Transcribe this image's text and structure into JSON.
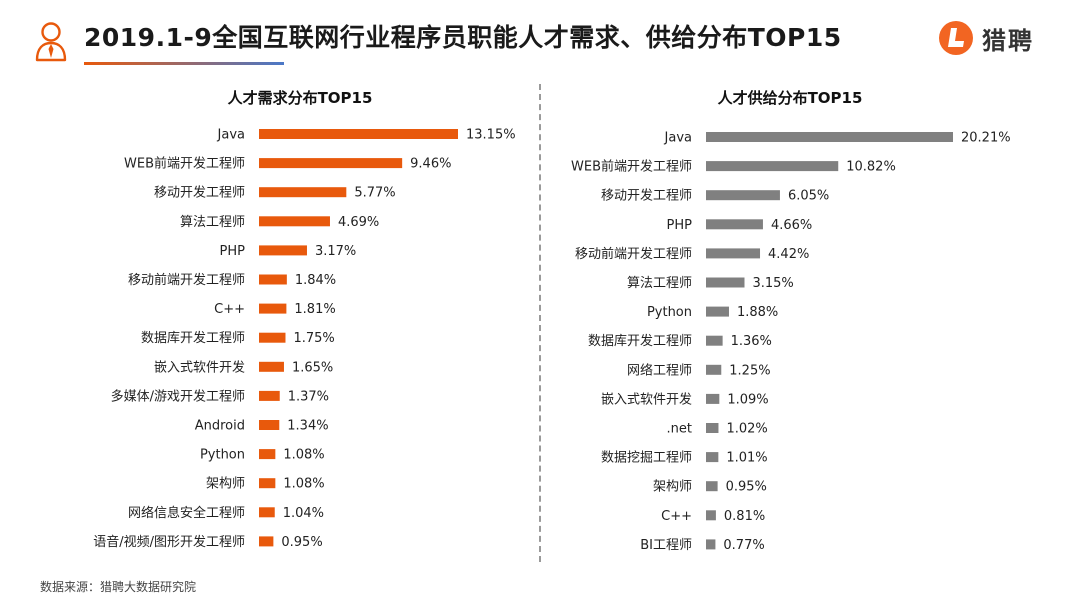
{
  "header": {
    "title": "2019.1-9全国互联网行业程序员职能人才需求、供给分布TOP15",
    "logo_text": "猎聘"
  },
  "colors": {
    "demand_bar": "#E8590C",
    "supply_bar": "#808080",
    "underline_start": "#E8590C",
    "underline_end": "#4A78C8",
    "logo_orange": "#F26522"
  },
  "chart_data": [
    {
      "type": "bar",
      "orientation": "horizontal",
      "title": "人才需求分布TOP15",
      "categories": [
        "Java",
        "WEB前端开发工程师",
        "移动开发工程师",
        "算法工程师",
        "PHP",
        "移动前端开发工程师",
        "C++",
        "数据库开发工程师",
        "嵌入式软件开发",
        "多媒体/游戏开发工程师",
        "Android",
        "Python",
        "架构师",
        "网络信息安全工程师",
        "语音/视频/图形开发工程师"
      ],
      "values": [
        13.15,
        9.46,
        5.77,
        4.69,
        3.17,
        1.84,
        1.81,
        1.75,
        1.65,
        1.37,
        1.34,
        1.08,
        1.08,
        1.04,
        0.95
      ],
      "value_labels": [
        "13.15%",
        "9.46%",
        "5.77%",
        "4.69%",
        "3.17%",
        "1.84%",
        "1.81%",
        "1.75%",
        "1.65%",
        "1.37%",
        "1.34%",
        "1.08%",
        "1.08%",
        "1.04%",
        "0.95%"
      ],
      "unit": "%"
    },
    {
      "type": "bar",
      "orientation": "horizontal",
      "title": "人才供给分布TOP15",
      "categories": [
        "Java",
        "WEB前端开发工程师",
        "移动开发工程师",
        "PHP",
        "移动前端开发工程师",
        "算法工程师",
        "Python",
        "数据库开发工程师",
        "网络工程师",
        "嵌入式软件开发",
        ".net",
        "数据挖掘工程师",
        "架构师",
        "C++",
        "BI工程师"
      ],
      "values": [
        20.21,
        10.82,
        6.05,
        4.66,
        4.42,
        3.15,
        1.88,
        1.36,
        1.25,
        1.09,
        1.02,
        1.01,
        0.95,
        0.81,
        0.77
      ],
      "value_labels": [
        "20.21%",
        "10.82%",
        "6.05%",
        "4.66%",
        "4.42%",
        "3.15%",
        "1.88%",
        "1.36%",
        "1.25%",
        "1.09%",
        "1.02%",
        "1.01%",
        "0.95%",
        "0.81%",
        "0.77%"
      ],
      "unit": "%"
    }
  ],
  "footer": {
    "source": "数据来源：猎聘大数据研究院"
  }
}
